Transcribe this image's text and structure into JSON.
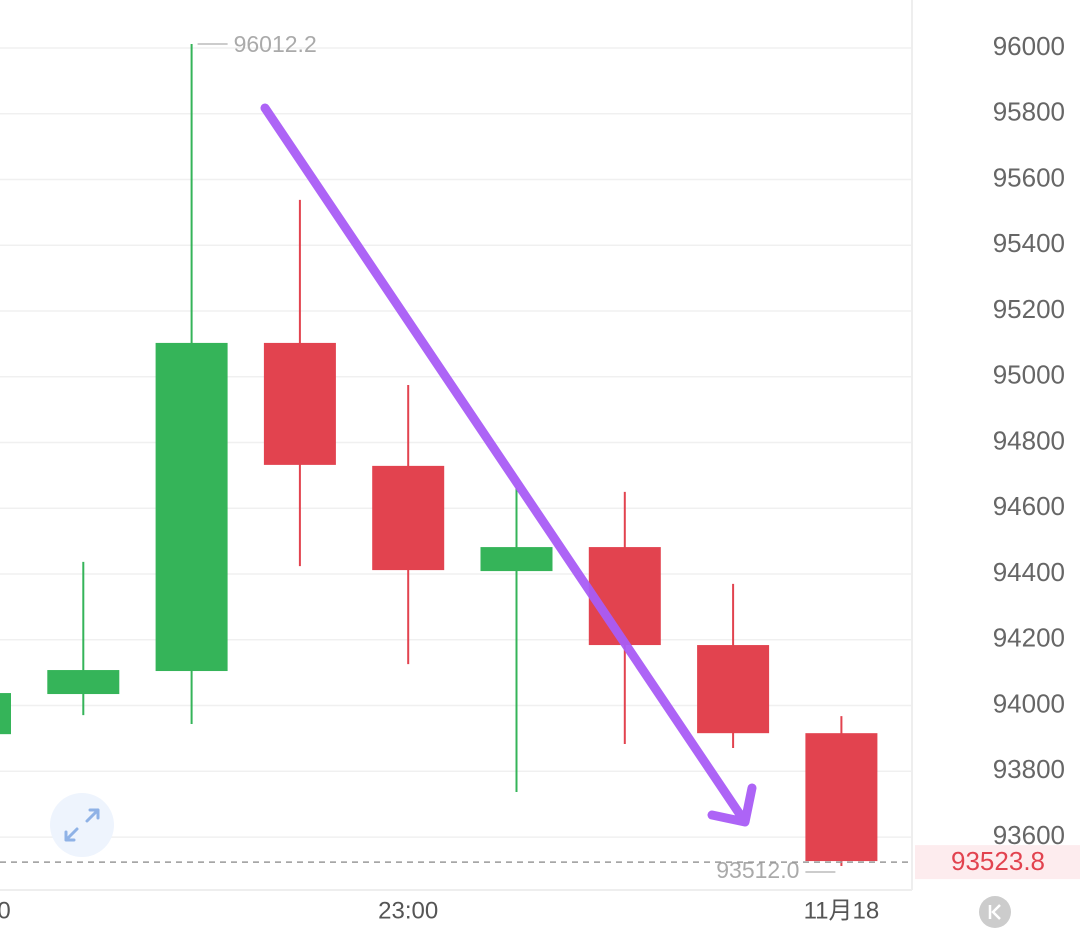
{
  "chart_data": {
    "type": "candlestick",
    "categories": [
      "0",
      null,
      null,
      null,
      "23:00",
      null,
      null,
      null,
      "11月18"
    ],
    "open": [
      93913,
      94035,
      94105,
      95103,
      94729,
      94409,
      94482,
      94184,
      93916
    ],
    "high": [
      94038,
      94437,
      96012.2,
      95538,
      94975,
      94662,
      94650,
      94370,
      93968
    ],
    "low": [
      93913,
      93971,
      93944,
      94424,
      94126,
      93737,
      93883,
      93871,
      93512.0
    ],
    "close": [
      94038,
      94108,
      95103,
      94732,
      94412,
      94482,
      94184,
      93916,
      93527
    ],
    "low_label": "93512.0",
    "up_color": "#35b459",
    "down_color": "#e2434f",
    "last_price": 93523.8,
    "ylim": [
      93439,
      96146
    ],
    "yticks": [
      93600,
      93800,
      94000,
      94200,
      94400,
      94600,
      94800,
      95000,
      95200,
      95400,
      95600,
      95800,
      96000
    ],
    "grid": true
  }
}
